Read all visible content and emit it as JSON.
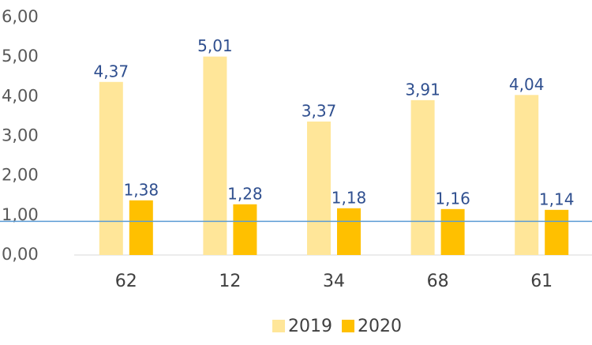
{
  "chart_data": {
    "type": "bar",
    "categories": [
      "62",
      "12",
      "34",
      "68",
      "61"
    ],
    "series": [
      {
        "name": "2019",
        "color": "#ffe699",
        "values": [
          4.37,
          5.01,
          3.37,
          3.91,
          4.04
        ],
        "value_labels": [
          "4,37",
          "5,01",
          "3,37",
          "3,91",
          "4,04"
        ]
      },
      {
        "name": "2020",
        "color": "#ffc000",
        "values": [
          1.38,
          1.28,
          1.18,
          1.16,
          1.14
        ],
        "value_labels": [
          "1,38",
          "1,28",
          "1,18",
          "1,16",
          "1,14"
        ]
      }
    ],
    "ylim": [
      0,
      6
    ],
    "yticks": [
      {
        "value": 0,
        "label": "0,00"
      },
      {
        "value": 1,
        "label": "1,00"
      },
      {
        "value": 2,
        "label": "2,00"
      },
      {
        "value": 3,
        "label": "3,00"
      },
      {
        "value": 4,
        "label": "4,00"
      },
      {
        "value": 5,
        "label": "5,00"
      },
      {
        "value": 6,
        "label": "6,00"
      }
    ],
    "grid": false,
    "legend": "bottom",
    "reference_line": {
      "value": 0.85,
      "color": "#5b9bd5"
    }
  }
}
